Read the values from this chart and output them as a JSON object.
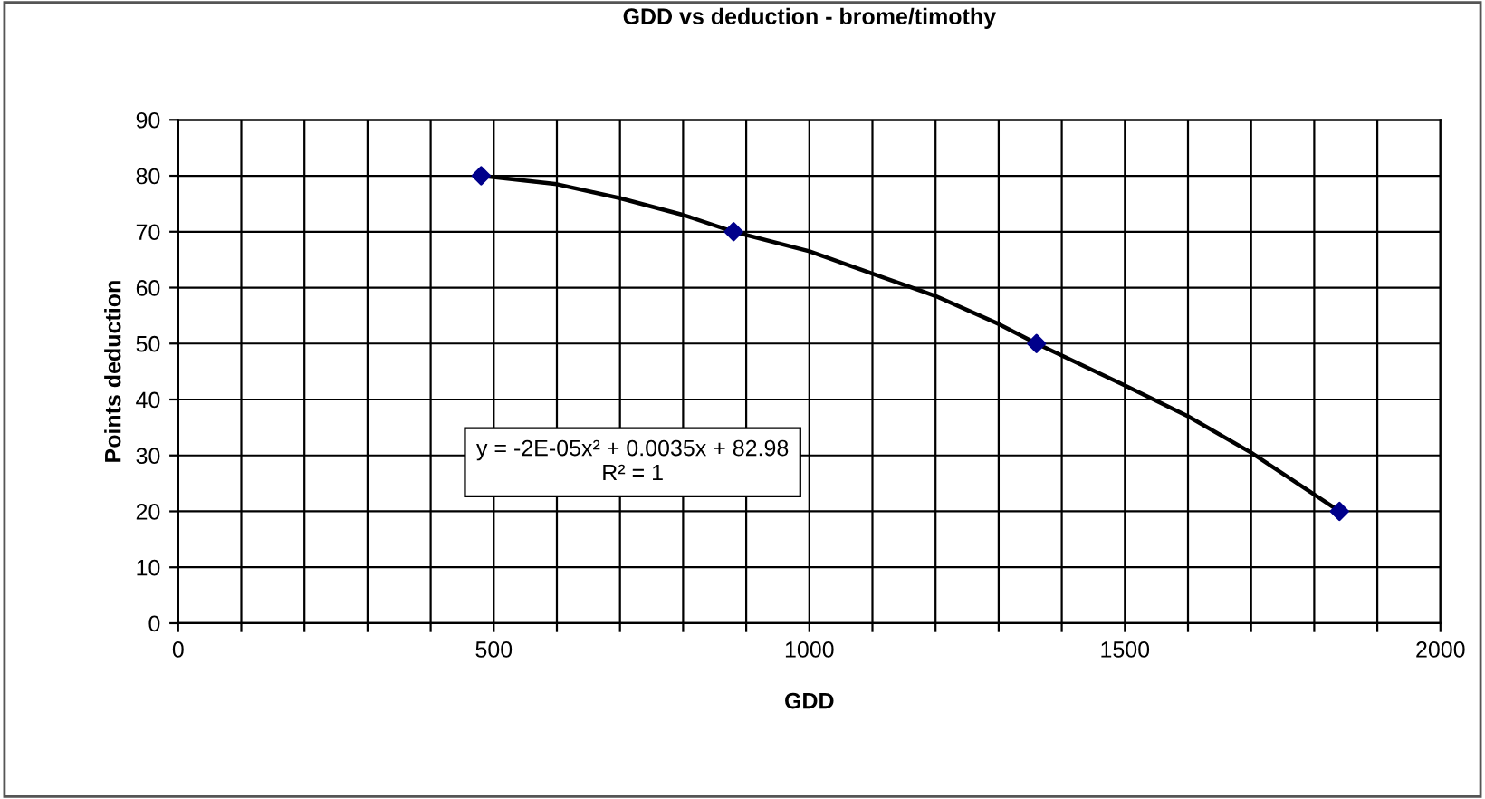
{
  "chart_data": {
    "type": "scatter",
    "title": "GDD vs deduction - brome/timothy",
    "xlabel": "GDD",
    "ylabel": "Points deduction",
    "series": [
      {
        "color": "#00008b",
        "marker": "diamond",
        "x": [
          480,
          880,
          1360,
          1840
        ],
        "values": [
          80,
          70,
          50,
          20
        ]
      },
      {
        "type": "line",
        "color": "#000000",
        "marker": "none",
        "line_style": "solid",
        "x": [
          480,
          600,
          700,
          800,
          880,
          1000,
          1100,
          1200,
          1300,
          1360,
          1500,
          1600,
          1700,
          1840
        ],
        "values": [
          80,
          78.5,
          76,
          73,
          70,
          66.5,
          62.5,
          58.5,
          53.5,
          50,
          42.5,
          37,
          30.5,
          20
        ]
      }
    ],
    "annotations": [
      "y = -2E-05x² + 0.0035x + 82.98\nR² = 1"
    ],
    "xlim": [
      0,
      2000
    ],
    "xticks": [
      0,
      {
        "value": 100,
        "label": null
      },
      {
        "value": 200,
        "label": null
      },
      {
        "value": 300,
        "label": null
      },
      {
        "value": 400,
        "label": null
      },
      500,
      {
        "value": 600,
        "label": null
      },
      {
        "value": 700,
        "label": null
      },
      {
        "value": 800,
        "label": null
      },
      {
        "value": 900,
        "label": null
      },
      1000,
      {
        "value": 1100,
        "label": null
      },
      {
        "value": 1200,
        "label": null
      },
      {
        "value": 1300,
        "label": null
      },
      {
        "value": 1400,
        "label": null
      },
      1500,
      {
        "value": 1600,
        "label": null
      },
      {
        "value": 1700,
        "label": null
      },
      {
        "value": 1800,
        "label": null
      },
      {
        "value": 1900,
        "label": null
      },
      2000
    ],
    "ylim": [
      0,
      90
    ],
    "yticks": [
      0,
      10,
      20,
      30,
      40,
      50,
      60,
      70,
      80,
      90
    ],
    "grid": true,
    "legend": false
  }
}
